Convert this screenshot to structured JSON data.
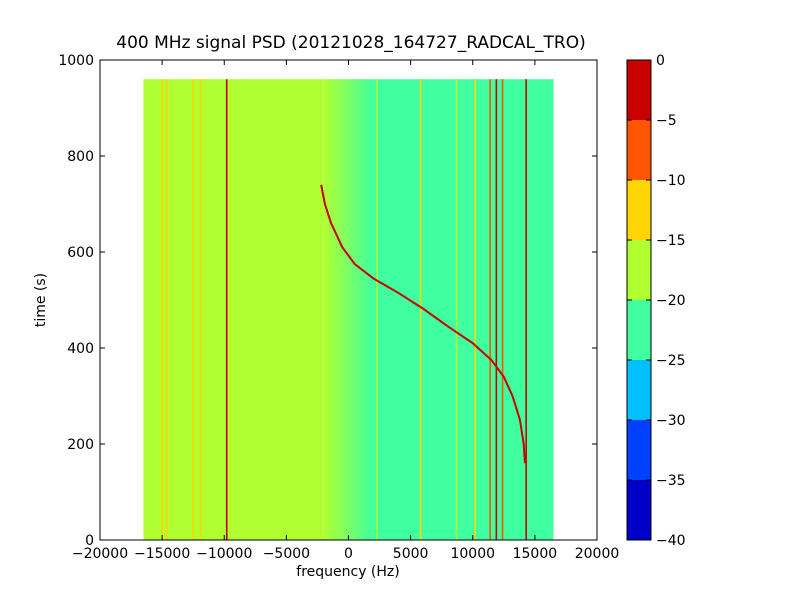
{
  "chart_data": {
    "type": "heatmap",
    "title": "400 MHz signal PSD (20121028_164727_RADCAL_TRO)",
    "xlabel": "frequency (Hz)",
    "ylabel": "time (s)",
    "xlim": [
      -20000,
      20000
    ],
    "ylim": [
      0,
      1000
    ],
    "x_ticks": [
      -20000,
      -15000,
      -10000,
      -5000,
      0,
      5000,
      10000,
      15000,
      20000
    ],
    "x_tick_labels": [
      "−20000",
      "−15000",
      "−10000",
      "−5000",
      "0",
      "5000",
      "10000",
      "15000",
      "20000"
    ],
    "y_ticks": [
      0,
      200,
      400,
      600,
      800,
      1000
    ],
    "y_tick_labels": [
      "0",
      "200",
      "400",
      "600",
      "800",
      "1000"
    ],
    "data_extent": {
      "x": [
        -16500,
        16500
      ],
      "y": [
        0,
        960
      ]
    },
    "colorbar": {
      "levels": [
        -40,
        -35,
        -30,
        -25,
        -20,
        -15,
        -10,
        -5,
        0
      ],
      "tick_labels": [
        "−40",
        "−35",
        "−30",
        "−25",
        "−20",
        "−15",
        "−10",
        "−5",
        "0"
      ],
      "colors": [
        "#0000c8",
        "#0040ff",
        "#00c0ff",
        "#40ffa0",
        "#b0ff30",
        "#ffd400",
        "#ff5500",
        "#c80000"
      ]
    },
    "background_regions": [
      {
        "x": [
          -16500,
          -2000
        ],
        "level": -17.5
      },
      {
        "x": [
          -2000,
          2000
        ],
        "level": -20,
        "note_gradient": true
      },
      {
        "x": [
          2000,
          16500
        ],
        "level": -22.5
      }
    ],
    "fixed_lines": [
      {
        "x": -15000,
        "level": -12.5
      },
      {
        "x": -14600,
        "level": -12.5
      },
      {
        "x": -12500,
        "level": -12.5
      },
      {
        "x": -11900,
        "level": -12.5
      },
      {
        "x": -9800,
        "level": -2.5
      },
      {
        "x": -8300,
        "level": -17.5
      },
      {
        "x": 2300,
        "level": -17.5
      },
      {
        "x": 5800,
        "level": -12.5
      },
      {
        "x": 8700,
        "level": -17.5
      },
      {
        "x": 10200,
        "level": -12.5
      },
      {
        "x": 11400,
        "level": -7.5
      },
      {
        "x": 11900,
        "level": -2.5
      },
      {
        "x": 12400,
        "level": -7.5
      },
      {
        "x": 14300,
        "level": -2.5
      }
    ],
    "doppler_trace": {
      "level": -2.5,
      "points": [
        [
          -2200,
          740
        ],
        [
          -1900,
          700
        ],
        [
          -1400,
          660
        ],
        [
          -500,
          610
        ],
        [
          500,
          575
        ],
        [
          2000,
          545
        ],
        [
          4000,
          515
        ],
        [
          6000,
          482
        ],
        [
          8000,
          445
        ],
        [
          10000,
          410
        ],
        [
          11500,
          375
        ],
        [
          12500,
          340
        ],
        [
          13200,
          300
        ],
        [
          13800,
          250
        ],
        [
          14100,
          200
        ],
        [
          14200,
          160
        ]
      ]
    }
  }
}
